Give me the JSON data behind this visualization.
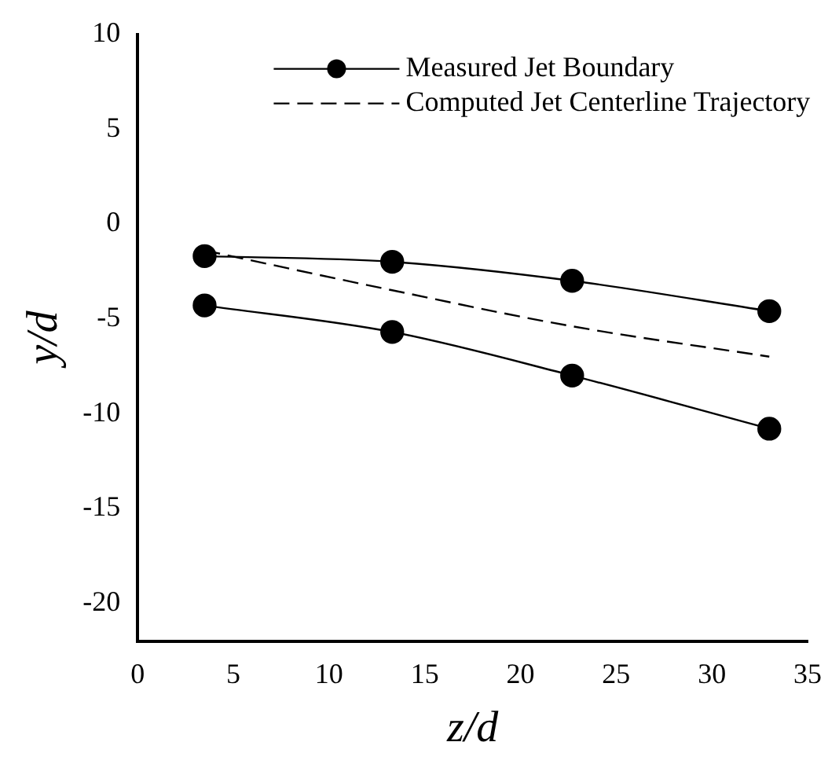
{
  "chart_data": {
    "type": "line",
    "xlabel": "z/d",
    "ylabel": "y/d",
    "xlim": [
      0,
      35
    ],
    "ylim": [
      -22,
      10
    ],
    "xticks": [
      0,
      5,
      10,
      15,
      20,
      25,
      30,
      35
    ],
    "yticks": [
      -20,
      -15,
      -10,
      -5,
      0,
      5,
      10
    ],
    "grid": false,
    "legend": "top right",
    "series": [
      {
        "name": "Measured Jet Boundary",
        "color": "#000000",
        "marker": "circle",
        "line_style": "solid",
        "x": [
          3.5,
          13.3,
          22.7,
          33
        ],
        "values": [
          -1.7,
          -2.0,
          -3.0,
          -4.6
        ]
      },
      {
        "color": "#000000",
        "marker": "circle",
        "line_style": "solid",
        "x": [
          3.5,
          13.3,
          22.7,
          33
        ],
        "values": [
          -4.3,
          -5.7,
          -8.0,
          -10.8
        ]
      },
      {
        "name": "Computed Jet Centerline Trajectory",
        "color": "#000000",
        "marker": "none",
        "line_style": "dashed",
        "x": [
          3.5,
          13.3,
          22.7,
          33
        ],
        "values": [
          -1.4,
          -3.5,
          -5.4,
          -7.0
        ]
      }
    ]
  }
}
